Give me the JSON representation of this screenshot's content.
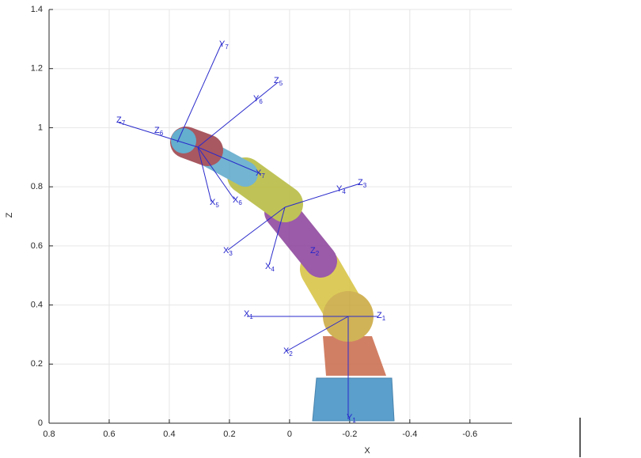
{
  "chart_data": {
    "type": "robot",
    "x_label": "X",
    "y_label": "Z",
    "xlim": [
      0.8,
      -0.74
    ],
    "ylim": [
      0,
      1.4
    ],
    "xticks": [
      0.8,
      0.6,
      0.4,
      0.2,
      0,
      -0.2,
      -0.4,
      -0.6
    ],
    "yticks": [
      0,
      0.2,
      0.4,
      0.6,
      0.8,
      1,
      1.2,
      1.4
    ],
    "grid": true,
    "frame_labels": [
      {
        "letter": "Y",
        "sub": "7"
      },
      {
        "letter": "Z",
        "sub": "5"
      },
      {
        "letter": "Y",
        "sub": "6"
      },
      {
        "letter": "Z",
        "sub": "7"
      },
      {
        "letter": "Z",
        "sub": "6"
      },
      {
        "letter": "X",
        "sub": "7"
      },
      {
        "letter": "Z",
        "sub": "3"
      },
      {
        "letter": "Y",
        "sub": "4"
      },
      {
        "letter": "X",
        "sub": "5"
      },
      {
        "letter": "X",
        "sub": "6"
      },
      {
        "letter": "X",
        "sub": "3"
      },
      {
        "letter": "X",
        "sub": "4"
      },
      {
        "letter": "Z",
        "sub": "2"
      },
      {
        "letter": "X",
        "sub": "1"
      },
      {
        "letter": "Z",
        "sub": "1"
      },
      {
        "letter": "X",
        "sub": "2"
      },
      {
        "letter": "Y",
        "sub": "1"
      }
    ]
  }
}
